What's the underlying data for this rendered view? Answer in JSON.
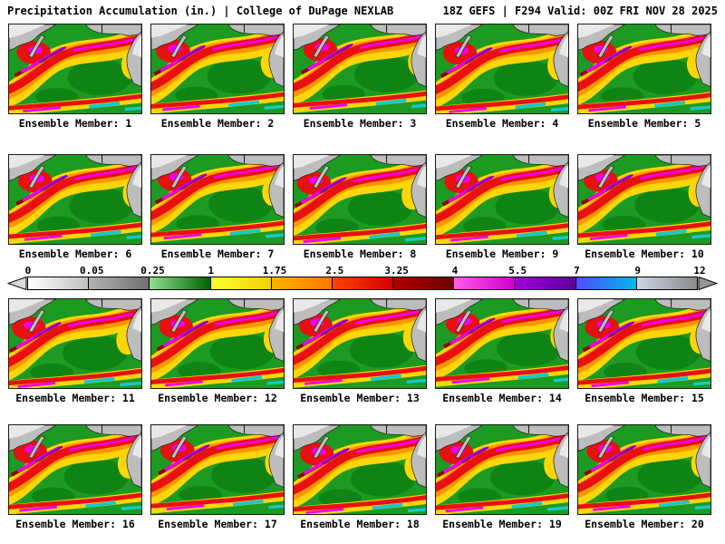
{
  "header": {
    "left": "Precipitation Accumulation (in.) | College of DuPage NEXLAB",
    "right": "18Z GEFS | F294 Valid: 00Z FRI NOV 28 2025"
  },
  "rows": [
    [
      1,
      2,
      3,
      4,
      5
    ],
    [
      6,
      7,
      8,
      9,
      10
    ],
    [
      11,
      12,
      13,
      14,
      15
    ],
    [
      16,
      17,
      18,
      19,
      20
    ]
  ],
  "members": [
    "Ensemble Member: 1",
    "Ensemble Member: 2",
    "Ensemble Member: 3",
    "Ensemble Member: 4",
    "Ensemble Member: 5",
    "Ensemble Member: 6",
    "Ensemble Member: 7",
    "Ensemble Member: 8",
    "Ensemble Member: 9",
    "Ensemble Member: 10",
    "Ensemble Member: 11",
    "Ensemble Member: 12",
    "Ensemble Member: 13",
    "Ensemble Member: 14",
    "Ensemble Member: 15",
    "Ensemble Member: 16",
    "Ensemble Member: 17",
    "Ensemble Member: 18",
    "Ensemble Member: 19",
    "Ensemble Member: 20"
  ],
  "colorbar": {
    "ticks": [
      "0",
      "0.05",
      "0.25",
      "1",
      "1.75",
      "2.5",
      "3.25",
      "4",
      "5.5",
      "7",
      "9",
      "12"
    ],
    "segments": [
      {
        "from": "#ffffff",
        "to": "#bfbfbf"
      },
      {
        "from": "#b3b3b3",
        "to": "#6f6f6f"
      },
      {
        "from": "#8fe08f",
        "to": "#006400"
      },
      {
        "from": "#ffff33",
        "to": "#f0cf00"
      },
      {
        "from": "#ffb300",
        "to": "#ff7700"
      },
      {
        "from": "#ff4400",
        "to": "#d40000"
      },
      {
        "from": "#b00000",
        "to": "#6e0000"
      },
      {
        "from": "#ff5ce8",
        "to": "#cc00cc"
      },
      {
        "from": "#a000d8",
        "to": "#5c00a0"
      },
      {
        "from": "#4d4dff",
        "to": "#00b8e8"
      },
      {
        "from": "#cfd4e8",
        "to": "#8a8a8a"
      }
    ]
  },
  "map_palette": {
    "ocean": "#1c9a21",
    "green2": "#0f8414",
    "yellow": "#ffd60a",
    "orange": "#ff9500",
    "red": "#e81010",
    "darkred": "#8f0000",
    "magenta": "#ee00ee",
    "purple": "#7a00b8",
    "cyan": "#18c8c8",
    "land": "#bdbdbd",
    "snow": "#e8e8e8"
  }
}
